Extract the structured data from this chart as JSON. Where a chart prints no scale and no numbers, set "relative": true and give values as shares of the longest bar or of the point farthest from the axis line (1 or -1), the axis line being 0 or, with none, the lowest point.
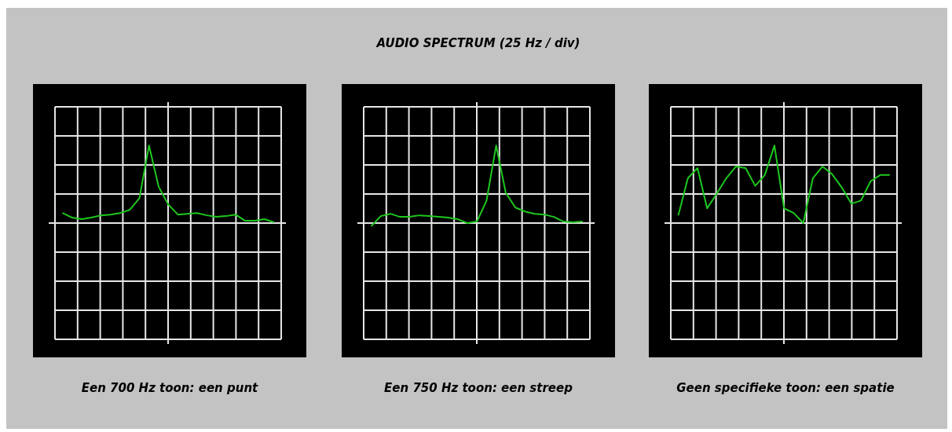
{
  "chart_data": [
    {
      "type": "line",
      "relative": true,
      "grid": true,
      "marker": "none",
      "annotations": [
        "Een 700 Hz toon: een punt"
      ],
      "categories": [
        null,
        null,
        null,
        null,
        null,
        null,
        null,
        null,
        null,
        null,
        null,
        null,
        null,
        null,
        null,
        null,
        null,
        null,
        null,
        null,
        null,
        null,
        null
      ],
      "series": [
        {
          "color": "#1ec81e",
          "values": [
            0.13,
            0.07,
            0.05,
            0.07,
            0.1,
            0.11,
            0.13,
            0.17,
            0.32,
            1,
            0.47,
            0.24,
            0.11,
            0.12,
            0.13,
            0.1,
            0.08,
            0.09,
            0.11,
            0.03,
            0.03,
            0.05,
            0.01
          ]
        }
      ]
    },
    {
      "type": "line",
      "title": "AUDIO SPECTRUM (25 Hz / div)",
      "relative": true,
      "grid": true,
      "marker": "none",
      "annotations": [
        "Een 750 Hz toon: een streep"
      ],
      "categories": [
        null,
        null,
        null,
        null,
        null,
        null,
        null,
        null,
        null,
        null,
        null,
        null,
        null,
        null,
        null,
        null,
        null,
        null,
        null,
        null,
        null,
        null,
        null
      ],
      "series": [
        {
          "color": "#1ec81e",
          "values": [
            -0.04,
            0.09,
            0.12,
            0.08,
            0.08,
            0.1,
            0.09,
            0.08,
            0.07,
            0.05,
            0,
            0.02,
            0.29,
            1,
            0.39,
            0.2,
            0.15,
            0.12,
            0.11,
            0.08,
            0.02,
            0.01,
            0.02
          ]
        }
      ]
    },
    {
      "type": "line",
      "relative": true,
      "grid": true,
      "marker": "none",
      "annotations": [
        "Geen specifieke toon: een spatie"
      ],
      "categories": [
        null,
        null,
        null,
        null,
        null,
        null,
        null,
        null,
        null,
        null,
        null,
        null,
        null,
        null,
        null,
        null,
        null,
        null,
        null,
        null,
        null,
        null,
        null
      ],
      "series": [
        {
          "color": "#1ec81e",
          "values": [
            0.1,
            0.58,
            0.71,
            0.19,
            0.38,
            0.58,
            0.73,
            0.71,
            0.48,
            0.62,
            1,
            0.19,
            0.13,
            0,
            0.58,
            0.73,
            0.63,
            0.46,
            0.25,
            0.29,
            0.54,
            0.62,
            0.62
          ]
        }
      ]
    }
  ]
}
